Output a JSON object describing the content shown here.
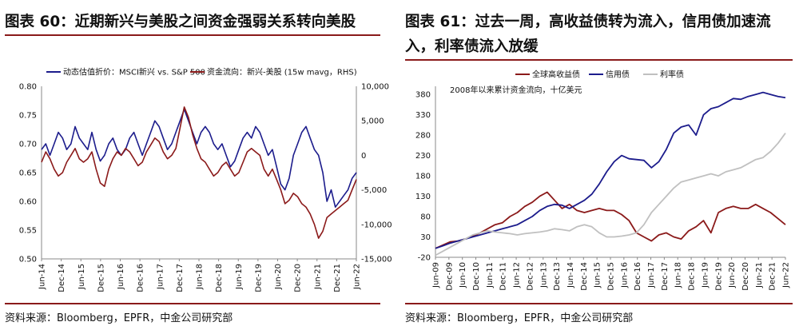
{
  "panels": [
    {
      "title": "图表 60：近期新兴与美股之间资金强弱关系转向美股",
      "source": "资料来源：Bloomberg，EPFR，中金公司研究部"
    },
    {
      "title": "图表 61：过去一周，高收益债转为流入，信用债加速流入，利率债流入放缓",
      "source": "资料来源：Bloomberg，EPFR，中金公司研究部"
    }
  ],
  "chart_data": [
    {
      "type": "line",
      "x_tick_labels": [
        "Jun-14",
        "Dec-14",
        "Jun-15",
        "Dec-15",
        "Jun-16",
        "Dec-16",
        "Jun-17",
        "Dec-17",
        "Jun-18",
        "Dec-18",
        "Jun-19",
        "Dec-19",
        "Jun-20",
        "Dec-20",
        "Jun-21",
        "Dec-21",
        "Jun-22"
      ],
      "y_left": {
        "ylim": [
          0.5,
          0.8
        ],
        "ticks": [
          "0.80",
          "0.75",
          "0.70",
          "0.65",
          "0.60",
          "0.55",
          "0.50"
        ]
      },
      "y_right": {
        "ylim": [
          -15000,
          10000
        ],
        "ticks": [
          "10,000",
          "5,000",
          "0",
          "-5,000",
          "-10,000",
          "-15,000"
        ]
      },
      "legend_placement": "top",
      "series": [
        {
          "name": "动态估值折价：MSCI新兴 vs. S&P 500",
          "axis": "left",
          "color": "#1c1c8c",
          "values": [
            0.69,
            0.7,
            0.68,
            0.7,
            0.72,
            0.71,
            0.69,
            0.7,
            0.73,
            0.71,
            0.7,
            0.69,
            0.72,
            0.69,
            0.67,
            0.68,
            0.7,
            0.71,
            0.69,
            0.68,
            0.69,
            0.71,
            0.72,
            0.7,
            0.68,
            0.7,
            0.72,
            0.74,
            0.73,
            0.71,
            0.69,
            0.7,
            0.72,
            0.74,
            0.76,
            0.74,
            0.72,
            0.7,
            0.72,
            0.73,
            0.72,
            0.7,
            0.69,
            0.7,
            0.68,
            0.66,
            0.67,
            0.69,
            0.71,
            0.72,
            0.71,
            0.73,
            0.72,
            0.7,
            0.68,
            0.69,
            0.66,
            0.63,
            0.62,
            0.64,
            0.68,
            0.7,
            0.72,
            0.73,
            0.71,
            0.69,
            0.68,
            0.65,
            0.6,
            0.62,
            0.59,
            0.6,
            0.61,
            0.62,
            0.64,
            0.65
          ]
        },
        {
          "name": "资金流向：新兴-美股 (15w mavg，RHS)",
          "axis": "right",
          "color": "#8b1a1a",
          "values": [
            -1000,
            500,
            -500,
            -2000,
            -3000,
            -2500,
            -1000,
            0,
            1000,
            -500,
            -1000,
            -500,
            500,
            -2000,
            -4000,
            -4500,
            -2000,
            -500,
            500,
            0,
            1000,
            500,
            -500,
            -1500,
            -1000,
            500,
            1500,
            2500,
            2000,
            500,
            -500,
            0,
            1000,
            4000,
            7000,
            5500,
            3000,
            1000,
            -500,
            -1000,
            -2000,
            -3000,
            -2500,
            -1500,
            -1000,
            -2000,
            -3000,
            -2500,
            -1000,
            500,
            1000,
            500,
            0,
            -2000,
            -3000,
            -2000,
            -3500,
            -5000,
            -7000,
            -6500,
            -5500,
            -6000,
            -7000,
            -7500,
            -8500,
            -10000,
            -12000,
            -11000,
            -9000,
            -8500,
            -8000,
            -7500,
            -7000,
            -6500,
            -5000,
            -3500
          ]
        }
      ]
    },
    {
      "type": "line",
      "annotation": "2008年以来累计资金流向，十亿美元",
      "x_tick_labels": [
        "Jun-09",
        "Dec-09",
        "Jun-10",
        "Dec-10",
        "Jun-11",
        "Dec-11",
        "Jun-12",
        "Dec-12",
        "Jun-13",
        "Dec-13",
        "Jun-14",
        "Dec-14",
        "Jun-15",
        "Dec-15",
        "Jun-16",
        "Dec-16",
        "Jun-17",
        "Dec-17",
        "Jun-18",
        "Dec-18",
        "Jun-19",
        "Dec-19",
        "Jun-20",
        "Dec-20",
        "Jun-21",
        "Dec-21",
        "Jun-22"
      ],
      "ylim": [
        -20,
        400
      ],
      "y_ticks": [
        "380",
        "330",
        "280",
        "230",
        "180",
        "130",
        "80",
        "30",
        "-20"
      ],
      "legend_placement": "top",
      "series": [
        {
          "name": "全球高收益债",
          "color": "#8b1a1a",
          "values": [
            2,
            10,
            18,
            20,
            25,
            32,
            40,
            50,
            60,
            65,
            80,
            90,
            105,
            115,
            130,
            140,
            120,
            100,
            110,
            95,
            90,
            95,
            100,
            95,
            95,
            85,
            70,
            40,
            30,
            20,
            35,
            40,
            30,
            25,
            45,
            55,
            70,
            40,
            90,
            100,
            105,
            100,
            100,
            110,
            100,
            90,
            75,
            60
          ]
        },
        {
          "name": "信用债",
          "color": "#1c1c8c",
          "values": [
            2,
            8,
            15,
            20,
            25,
            30,
            35,
            40,
            45,
            50,
            55,
            60,
            70,
            80,
            95,
            105,
            110,
            108,
            100,
            110,
            120,
            135,
            160,
            190,
            215,
            230,
            222,
            220,
            218,
            200,
            215,
            245,
            285,
            300,
            305,
            280,
            330,
            345,
            350,
            360,
            370,
            368,
            375,
            380,
            385,
            380,
            375,
            372
          ]
        },
        {
          "name": "利率债",
          "color": "#c0c0c0",
          "values": [
            -15,
            -5,
            5,
            15,
            25,
            35,
            40,
            45,
            42,
            40,
            38,
            35,
            38,
            40,
            42,
            45,
            50,
            48,
            45,
            55,
            60,
            55,
            40,
            30,
            30,
            32,
            35,
            40,
            60,
            90,
            110,
            130,
            150,
            165,
            170,
            175,
            180,
            185,
            180,
            190,
            195,
            200,
            210,
            220,
            225,
            240,
            260,
            285
          ]
        }
      ]
    }
  ]
}
